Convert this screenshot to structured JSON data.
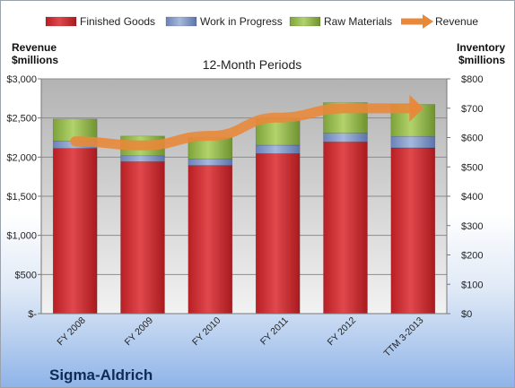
{
  "chart_data": {
    "type": "bar",
    "stacked": true,
    "title": "12-Month Periods",
    "company": "Sigma-Aldrich",
    "y_left_label": [
      "Revenue",
      "$millions"
    ],
    "y_right_label": [
      "Inventory",
      "$millions"
    ],
    "categories": [
      "FY 2008",
      "FY 2009",
      "FY 2010",
      "FY 2011",
      "FY 2012",
      "TTM 3-2013"
    ],
    "y_left_ticks": [
      "$-",
      "$500",
      "$1,000",
      "$1,500",
      "$2,000",
      "$2,500",
      "$3,000"
    ],
    "y_right_ticks": [
      "$0",
      "$100",
      "$200",
      "$300",
      "$400",
      "$500",
      "$600",
      "$700",
      "$800"
    ],
    "ylim_left": [
      0,
      3000
    ],
    "ylim_right": [
      0,
      800
    ],
    "legend": [
      "Finished Goods",
      "Work in Progress",
      "Raw Materials",
      "Revenue"
    ],
    "legend_position": "top",
    "series": [
      {
        "name": "Finished Goods",
        "axis": "right",
        "kind": "bar",
        "color": "#c8282d",
        "values": [
          563,
          518,
          505,
          545,
          585,
          565
        ]
      },
      {
        "name": "Work in Progress",
        "axis": "right",
        "kind": "bar",
        "color": "#7b93c8",
        "values": [
          25,
          20,
          22,
          29,
          30,
          39
        ]
      },
      {
        "name": "Raw Materials",
        "axis": "right",
        "kind": "bar",
        "color": "#8fb548",
        "values": [
          75,
          67,
          73,
          89,
          104,
          109
        ]
      },
      {
        "name": "Revenue",
        "axis": "left",
        "kind": "line",
        "color": "#e8883a",
        "values": [
          2201,
          2148,
          2271,
          2505,
          2623,
          2624
        ]
      }
    ]
  }
}
